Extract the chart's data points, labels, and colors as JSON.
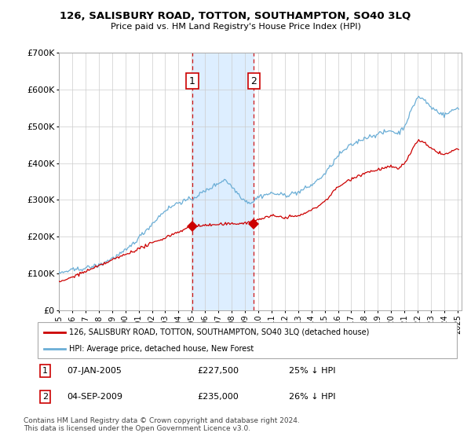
{
  "title": "126, SALISBURY ROAD, TOTTON, SOUTHAMPTON, SO40 3LQ",
  "subtitle": "Price paid vs. HM Land Registry's House Price Index (HPI)",
  "ylim": [
    0,
    700000
  ],
  "yticks": [
    0,
    100000,
    200000,
    300000,
    400000,
    500000,
    600000,
    700000
  ],
  "hpi_color": "#6baed6",
  "price_color": "#cc0000",
  "t1_year": 2005.04,
  "t1_price": 227500,
  "t2_year": 2009.67,
  "t2_price": 235000,
  "shade_color": "#ddeeff",
  "legend_label1": "126, SALISBURY ROAD, TOTTON, SOUTHAMPTON, SO40 3LQ (detached house)",
  "legend_label2": "HPI: Average price, detached house, New Forest",
  "footer": "Contains HM Land Registry data © Crown copyright and database right 2024.\nThis data is licensed under the Open Government Licence v3.0.",
  "background_color": "#ffffff",
  "grid_color": "#cccccc",
  "chart_bg": "#ffffff"
}
